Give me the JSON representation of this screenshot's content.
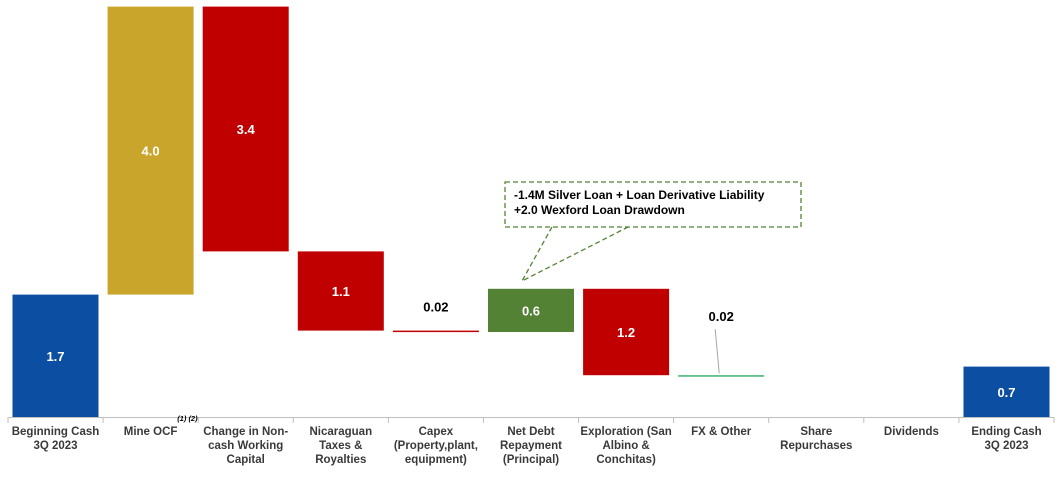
{
  "chart_data": {
    "type": "waterfall",
    "unit_hint": "",
    "categories": [
      "Beginning Cash 3Q 2023",
      "Mine OCF",
      "Change in Non-cash Working Capital",
      "Nicaraguan Taxes & Royalties",
      "Capex (Property,plant, equipment)",
      "Net Debt Repayment (Principal)",
      "Exploration (San Albino & Conchitas)",
      "FX & Other",
      "Share Repurchases",
      "Dividends",
      "Ending Cash 3Q 2023"
    ],
    "category_lines": [
      [
        "Beginning Cash",
        "3Q 2023"
      ],
      [
        "Mine OCF"
      ],
      [
        "Change in Non-",
        "cash Working",
        "Capital"
      ],
      [
        "Nicaraguan",
        "Taxes &",
        "Royalties"
      ],
      [
        "Capex",
        "(Property,plant,",
        "equipment)"
      ],
      [
        "Net Debt",
        "Repayment",
        "(Principal)"
      ],
      [
        "Exploration (San",
        "Albino &",
        "Conchitas)"
      ],
      [
        "FX & Other"
      ],
      [
        "Share",
        "Repurchases"
      ],
      [
        "Dividends"
      ],
      [
        "Ending Cash",
        "3Q 2023"
      ]
    ],
    "steps": [
      {
        "kind": "total",
        "value": 1.7,
        "label": "1.7",
        "color": "#0B4EA2"
      },
      {
        "kind": "increase",
        "value": 4.0,
        "label": "4.0",
        "color": "#C9A62B"
      },
      {
        "kind": "decrease",
        "value": -3.4,
        "label": "3.4",
        "color": "#C00000"
      },
      {
        "kind": "decrease",
        "value": -1.1,
        "label": "1.1",
        "color": "#C00000"
      },
      {
        "kind": "decrease",
        "value": -0.02,
        "label": "0.02",
        "color": "#C00000"
      },
      {
        "kind": "increase",
        "value": 0.6,
        "label": "0.6",
        "color": "#548235"
      },
      {
        "kind": "decrease",
        "value": -1.2,
        "label": "1.2",
        "color": "#C00000"
      },
      {
        "kind": "decrease",
        "value": -0.02,
        "label": "0.02",
        "color": "#3CB371"
      },
      {
        "kind": "none",
        "value": 0,
        "label": ""
      },
      {
        "kind": "none",
        "value": 0,
        "label": ""
      },
      {
        "kind": "total",
        "value": 0.7,
        "label": "0.7",
        "color": "#0B4EA2"
      }
    ],
    "footnote_marker": "(1) (2)",
    "annotation": {
      "lines": [
        "-1.4M Silver Loan + Loan Derivative Liability",
        "+2.0 Wexford Loan Drawdown"
      ],
      "border_color": "#548235"
    },
    "legend": "none",
    "grid": false
  }
}
